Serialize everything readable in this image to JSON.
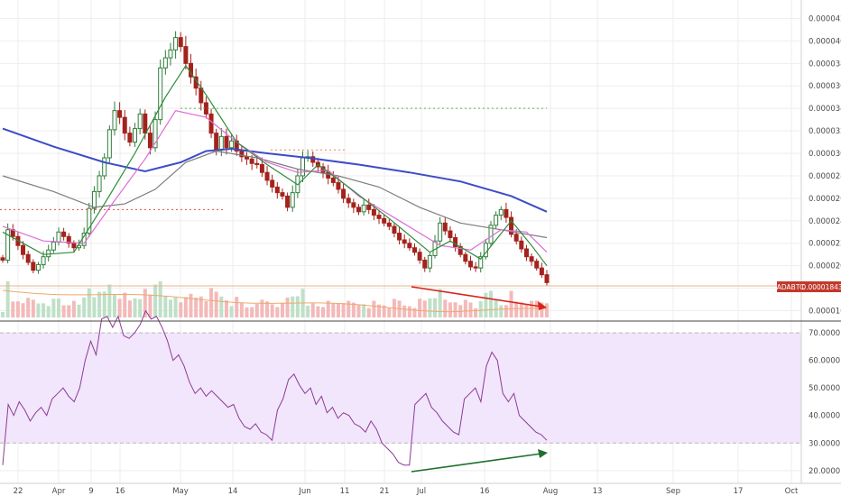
{
  "chart_data": [
    {
      "type": "candlestick",
      "symbol": "ADABTC",
      "last_price_label": "0.00001843",
      "ylim": [
        1.54e-05,
        4.3e-05
      ],
      "y_ticks": [
        "0.00004200",
        "0.00004000",
        "0.00003800",
        "0.00003600",
        "0.00003400",
        "0.00003200",
        "0.00003000",
        "0.00002800",
        "0.00002600",
        "0.00002400",
        "0.00002200",
        "0.00002000",
        "0.00001800",
        "0.00001600"
      ],
      "x_ticks": [
        "22",
        "Apr",
        "9",
        "16",
        "May",
        "14",
        "Jun",
        "11",
        "21",
        "Jul",
        "16",
        "Aug",
        "13",
        "Sep",
        "17",
        "Oct"
      ],
      "close_series": [
        2.05e-05,
        2.32e-05,
        2.26e-05,
        2.18e-05,
        2.1e-05,
        2.03e-05,
        1.96e-05,
        2.01e-05,
        2.08e-05,
        2.14e-05,
        2.21e-05,
        2.3e-05,
        2.26e-05,
        2.2e-05,
        2.16e-05,
        2.18e-05,
        2.29e-05,
        2.51e-05,
        2.66e-05,
        2.8e-05,
        2.96e-05,
        3.21e-05,
        3.38e-05,
        3.32e-05,
        3.18e-05,
        3.1e-05,
        3.22e-05,
        3.35e-05,
        3.18e-05,
        3.05e-05,
        3.3e-05,
        3.76e-05,
        3.85e-05,
        3.92e-05,
        4.03e-05,
        3.95e-05,
        3.8e-05,
        3.68e-05,
        3.58e-05,
        3.45e-05,
        3.35e-05,
        3.18e-05,
        3.03e-05,
        3.15e-05,
        3.05e-05,
        3.11e-05,
        3.02e-05,
        2.97e-05,
        2.95e-05,
        2.91e-05,
        2.9e-05,
        2.83e-05,
        2.76e-05,
        2.7e-05,
        2.65e-05,
        2.62e-05,
        2.52e-05,
        2.65e-05,
        2.8e-05,
        2.96e-05,
        2.97e-05,
        2.92e-05,
        2.88e-05,
        2.83e-05,
        2.78e-05,
        2.74e-05,
        2.68e-05,
        2.6e-05,
        2.56e-05,
        2.52e-05,
        2.48e-05,
        2.54e-05,
        2.5e-05,
        2.45e-05,
        2.42e-05,
        2.38e-05,
        2.35e-05,
        2.29e-05,
        2.23e-05,
        2.2e-05,
        2.16e-05,
        2.12e-05,
        2.05e-05,
        1.98e-05,
        2.09e-05,
        2.22e-05,
        2.38e-05,
        2.31e-05,
        2.25e-05,
        2.17e-05,
        2.1e-05,
        2.04e-05,
        1.99e-05,
        1.98e-05,
        2.08e-05,
        2.2e-05,
        2.36e-05,
        2.45e-05,
        2.5e-05,
        2.43e-05,
        2.28e-05,
        2.22e-05,
        2.15e-05,
        2.08e-05,
        2.04e-05,
        1.98e-05,
        1.92e-05,
        1.85e-05
      ],
      "ma_series": [
        {
          "color": "#3d4cc7",
          "values": [
            [
              0,
              3.22e-05
            ],
            [
              10,
              3.06e-05
            ],
            [
              20,
              2.92e-05
            ],
            [
              28,
              2.84e-05
            ],
            [
              35,
              2.92e-05
            ],
            [
              40,
              3.02e-05
            ],
            [
              45,
              3.04e-05
            ],
            [
              52,
              3e-05
            ],
            [
              60,
              2.96e-05
            ],
            [
              70,
              2.9e-05
            ],
            [
              80,
              2.83e-05
            ],
            [
              90,
              2.75e-05
            ],
            [
              100,
              2.62e-05
            ],
            [
              107,
              2.48e-05
            ]
          ]
        },
        {
          "color": "#7d7d7d",
          "values": [
            [
              0,
              2.8e-05
            ],
            [
              10,
              2.66e-05
            ],
            [
              18,
              2.52e-05
            ],
            [
              24,
              2.55e-05
            ],
            [
              30,
              2.68e-05
            ],
            [
              36,
              2.92e-05
            ],
            [
              42,
              3.02e-05
            ],
            [
              50,
              2.96e-05
            ],
            [
              58,
              2.86e-05
            ],
            [
              66,
              2.8e-05
            ],
            [
              74,
              2.7e-05
            ],
            [
              82,
              2.52e-05
            ],
            [
              90,
              2.38e-05
            ],
            [
              98,
              2.32e-05
            ],
            [
              107,
              2.25e-05
            ]
          ]
        },
        {
          "color": "#e06bd8",
          "values": [
            [
              0,
              2.35e-05
            ],
            [
              8,
              2.22e-05
            ],
            [
              16,
              2.2e-05
            ],
            [
              22,
              2.58e-05
            ],
            [
              28,
              2.95e-05
            ],
            [
              34,
              3.38e-05
            ],
            [
              40,
              3.32e-05
            ],
            [
              46,
              3.1e-05
            ],
            [
              52,
              2.92e-05
            ],
            [
              58,
              2.83e-05
            ],
            [
              64,
              2.85e-05
            ],
            [
              70,
              2.62e-05
            ],
            [
              78,
              2.4e-05
            ],
            [
              86,
              2.18e-05
            ],
            [
              92,
              2.14e-05
            ],
            [
              98,
              2.32e-05
            ],
            [
              103,
              2.3e-05
            ],
            [
              107,
              2.12e-05
            ]
          ]
        },
        {
          "color": "#2e8b3a",
          "values": [
            [
              0,
              2.3e-05
            ],
            [
              8,
              2.1e-05
            ],
            [
              14,
              2.12e-05
            ],
            [
              20,
              2.55e-05
            ],
            [
              26,
              3e-05
            ],
            [
              32,
              3.5e-05
            ],
            [
              36,
              3.78e-05
            ],
            [
              40,
              3.52e-05
            ],
            [
              46,
              3.1e-05
            ],
            [
              52,
              2.9e-05
            ],
            [
              58,
              2.72e-05
            ],
            [
              62,
              2.9e-05
            ],
            [
              68,
              2.7e-05
            ],
            [
              76,
              2.42e-05
            ],
            [
              84,
              2.12e-05
            ],
            [
              88,
              2.22e-05
            ],
            [
              94,
              2.06e-05
            ],
            [
              100,
              2.4e-05
            ],
            [
              104,
              2.18e-05
            ],
            [
              107,
              2e-05
            ]
          ]
        }
      ]
    },
    {
      "type": "line",
      "indicator": "RSI",
      "ylim": [
        17,
        72
      ],
      "y_ticks": [
        "70.0000",
        "60.0000",
        "50.0000",
        "40.0000",
        "30.0000",
        "20.0000"
      ],
      "band_upper": 70,
      "band_lower": 30,
      "values": [
        22,
        44,
        40,
        45,
        42,
        38,
        41,
        43,
        40,
        46,
        48,
        50,
        47,
        45,
        50,
        60,
        67,
        62,
        75,
        76,
        72,
        76,
        69,
        68,
        70,
        73,
        78,
        75,
        76,
        72,
        67,
        60,
        62,
        58,
        52,
        48,
        50,
        47,
        49,
        47,
        45,
        43,
        44,
        39,
        36,
        35,
        37,
        34,
        33,
        31,
        42,
        46,
        53,
        55,
        51,
        48,
        50,
        44,
        47,
        41,
        43,
        39,
        41,
        40,
        37,
        36,
        34,
        38,
        35,
        30,
        28,
        26,
        23,
        22,
        22,
        44,
        46,
        48,
        43,
        41,
        38,
        36,
        34,
        33,
        46,
        48,
        50,
        45,
        58,
        63,
        60,
        48,
        45,
        48,
        40,
        38,
        36,
        34,
        33,
        31
      ]
    }
  ]
}
